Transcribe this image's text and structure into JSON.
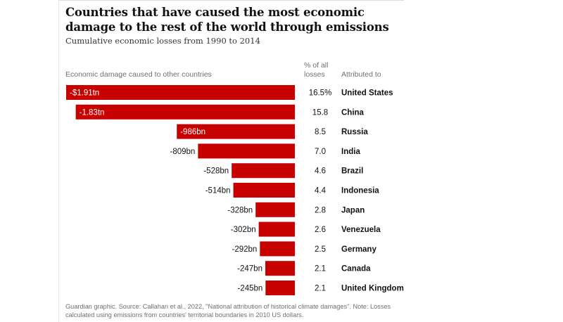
{
  "title": "Countries that have caused the most economic damage to the rest of the world through emissions",
  "subtitle": "Cumulative economic losses from 1990 to 2014",
  "column_headers": {
    "damage": "Economic damage caused to other countries",
    "percent": "% of all losses",
    "attributed": "Attributed to"
  },
  "footer": "Guardian graphic. Source: Callahan et al., 2022, \"National attribution of historical climate damages\". Note: Losses calculated using emissions from countries' territorial boundaries in 2010 US dollars.",
  "colors": {
    "bar": "#c70000"
  },
  "chart_data": {
    "type": "bar",
    "orientation": "horizontal",
    "unit": "US$ billions (2010)",
    "categories": [
      "United States",
      "China",
      "Russia",
      "India",
      "Brazil",
      "Indonesia",
      "Japan",
      "Venezuela",
      "Germany",
      "Canada",
      "United Kingdom"
    ],
    "values": [
      -1910,
      -1830,
      -986,
      -809,
      -528,
      -514,
      -328,
      -302,
      -292,
      -247,
      -245
    ],
    "value_labels": [
      "-$1.91tn",
      "-1.83tn",
      "-986bn",
      "-809bn",
      "-528bn",
      "-514bn",
      "-328bn",
      "-302bn",
      "-292bn",
      "-247bn",
      "-245bn"
    ],
    "percent_labels": [
      "16.5%",
      "15.8",
      "8.5",
      "7.0",
      "4.6",
      "4.4",
      "2.8",
      "2.6",
      "2.5",
      "2.1",
      "2.1"
    ],
    "xlim": [
      -1910,
      0
    ],
    "grid": false,
    "legend": "none"
  }
}
